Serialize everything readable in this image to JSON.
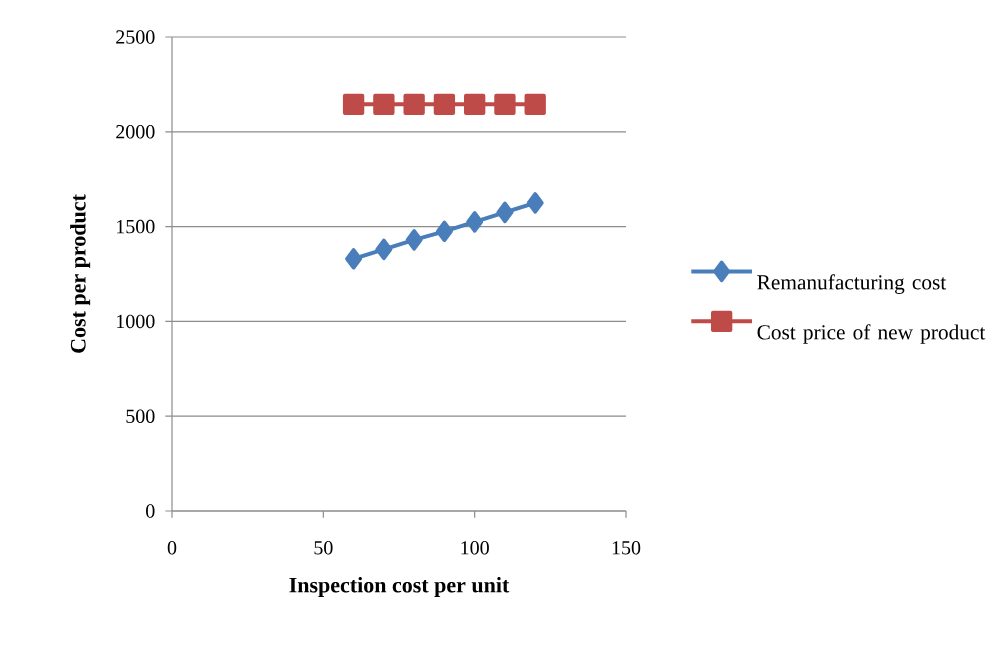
{
  "chart_data": {
    "type": "line",
    "xlabel": "Inspection cost per unit",
    "ylabel": "Cost per product",
    "x": [
      60,
      70,
      80,
      90,
      100,
      110,
      120
    ],
    "series": [
      {
        "name": "Remanufacturing cost",
        "color": "#4a7ebb",
        "marker": "diamond",
        "values": [
          1330,
          1380,
          1430,
          1475,
          1525,
          1575,
          1625
        ]
      },
      {
        "name": "Cost price of new product",
        "color": "#be4b48",
        "marker": "square",
        "values": [
          2145,
          2145,
          2145,
          2145,
          2145,
          2145,
          2145
        ]
      }
    ],
    "xlim": [
      0,
      150
    ],
    "xticks": [
      0,
      50,
      100,
      150
    ],
    "ylim": [
      0,
      2500
    ],
    "yticks": [
      0,
      500,
      1000,
      1500,
      2000,
      2500
    ],
    "grid": "y",
    "legend": "right",
    "line_style": "solid"
  }
}
